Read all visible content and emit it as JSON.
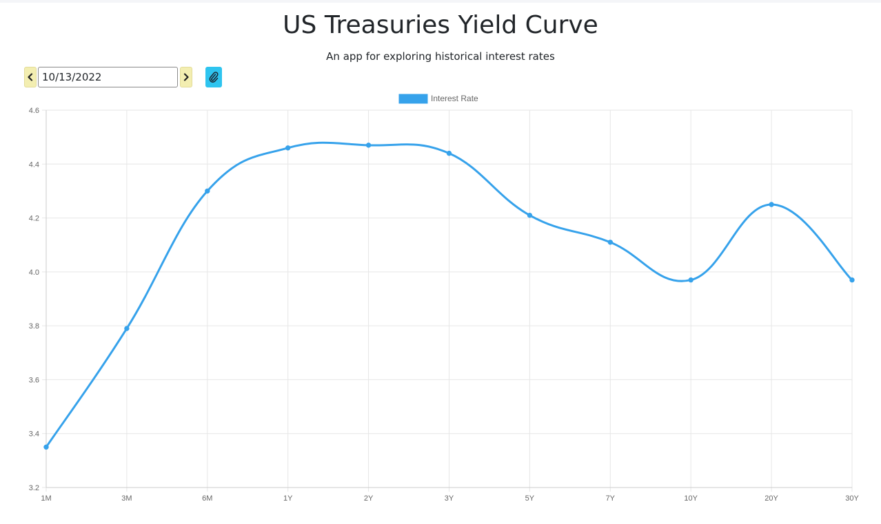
{
  "header": {
    "title": "US Treasuries Yield Curve",
    "subtitle": "An app for exploring historical interest rates"
  },
  "controls": {
    "date_value": "10/13/2022",
    "prev_icon": "chevron-left-icon",
    "next_icon": "chevron-right-icon",
    "link_icon": "paperclip-icon",
    "accent_color": "#2ec4ef",
    "nav_button_color": "#f3eeb1"
  },
  "chart_data": {
    "type": "line",
    "categories": [
      "1M",
      "3M",
      "6M",
      "1Y",
      "2Y",
      "3Y",
      "5Y",
      "7Y",
      "10Y",
      "20Y",
      "30Y"
    ],
    "series": [
      {
        "name": "Interest Rate",
        "values": [
          3.35,
          3.79,
          4.3,
          4.46,
          4.47,
          4.44,
          4.21,
          4.11,
          3.97,
          4.25,
          3.97
        ],
        "color": "#36a2eb"
      }
    ],
    "y_ticks": [
      "4.6",
      "4.4",
      "4.2",
      "4.0",
      "3.8",
      "3.6",
      "3.4",
      "3.2"
    ],
    "ylim": [
      3.2,
      4.6
    ],
    "smooth": true,
    "grid": true,
    "legend_position": "top-center"
  }
}
